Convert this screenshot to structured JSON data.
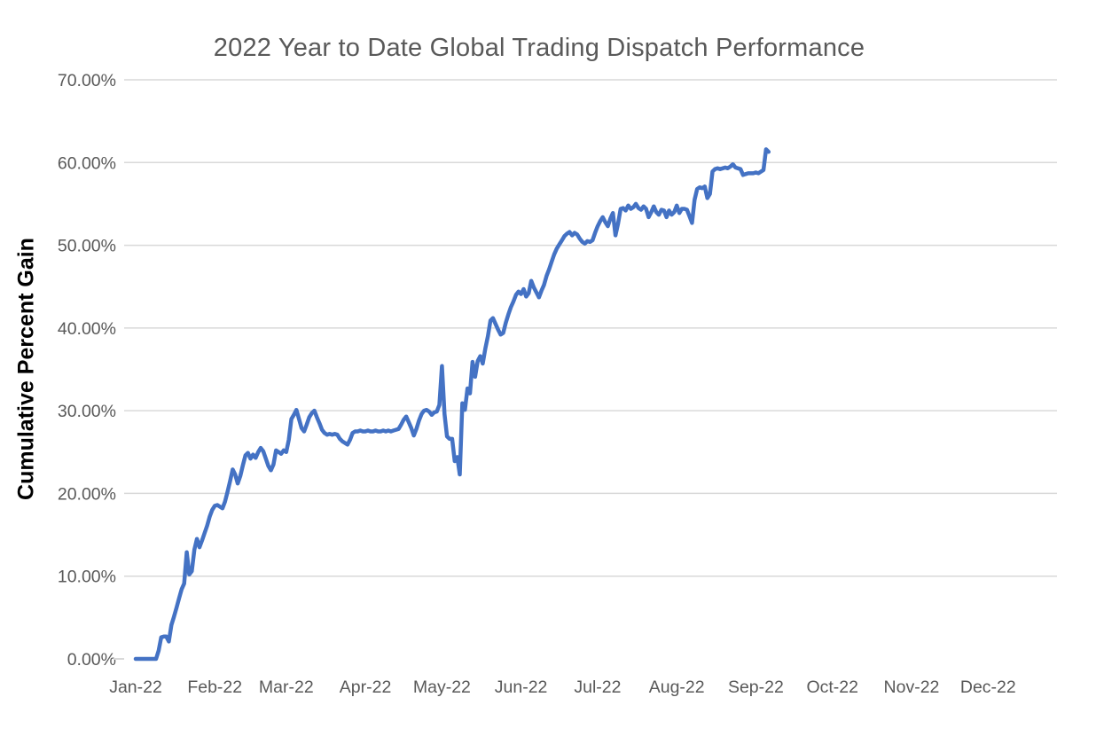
{
  "chart_data": {
    "type": "line",
    "title": "2022 Year to Date Global Trading Dispatch Performance",
    "ylabel": "Cumulative Percent Gain",
    "xlabel": "",
    "x_tick_labels": [
      "Jan-22",
      "Feb-22",
      "Mar-22",
      "Apr-22",
      "May-22",
      "Jun-22",
      "Jul-22",
      "Aug-22",
      "Sep-22",
      "Oct-22",
      "Nov-22",
      "Dec-22"
    ],
    "y_tick_labels": [
      "0.00%",
      "10.00%",
      "20.00%",
      "30.00%",
      "40.00%",
      "50.00%",
      "60.00%",
      "70.00%"
    ],
    "y_tick_values": [
      0,
      10,
      20,
      30,
      40,
      50,
      60,
      70
    ],
    "ylim": [
      0,
      70
    ],
    "xlim_dates": [
      "2022-01-01",
      "2022-12-31"
    ],
    "data_start_date": "2022-01-01",
    "data_end_date": "2022-09-06",
    "grid": "horizontal-only",
    "legend": "none",
    "series": [
      {
        "name": "Cumulative Percent Gain",
        "unit": "%",
        "frequency": "daily",
        "values": [
          0,
          0,
          0,
          0,
          0,
          0,
          0,
          0,
          0,
          1.0,
          2.6,
          2.7,
          2.7,
          2.1,
          4.1,
          5.1,
          6.2,
          7.3,
          8.4,
          9.1,
          12.9,
          10.2,
          10.6,
          13.2,
          14.5,
          13.5,
          14.3,
          15.2,
          16.1,
          17.2,
          18.0,
          18.5,
          18.6,
          18.4,
          18.2,
          19.0,
          20.2,
          21.5,
          22.9,
          22.3,
          21.2,
          22.1,
          23.4,
          24.6,
          24.9,
          24.2,
          24.7,
          24.3,
          25.0,
          25.5,
          25.1,
          24.2,
          23.3,
          22.8,
          23.5,
          25.2,
          25.0,
          24.8,
          25.2,
          25.0,
          26.5,
          29.0,
          29.5,
          30.1,
          29.0,
          27.9,
          27.5,
          28.3,
          29.2,
          29.7,
          30.0,
          29.2,
          28.5,
          27.7,
          27.3,
          27.1,
          27.2,
          27.1,
          27.2,
          27.1,
          26.6,
          26.3,
          26.1,
          25.9,
          26.5,
          27.3,
          27.5,
          27.5,
          27.6,
          27.5,
          27.5,
          27.6,
          27.5,
          27.5,
          27.6,
          27.5,
          27.5,
          27.6,
          27.5,
          27.6,
          27.5,
          27.6,
          27.7,
          27.8,
          28.3,
          28.9,
          29.3,
          28.6,
          27.9,
          27.0,
          27.8,
          28.8,
          29.6,
          30.0,
          30.1,
          29.9,
          29.5,
          29.8,
          29.9,
          30.7,
          35.4,
          29.6,
          26.9,
          26.6,
          26.6,
          23.9,
          24.4,
          22.3,
          30.9,
          30.1,
          32.7,
          32.1,
          35.9,
          34.1,
          36.0,
          36.6,
          35.7,
          37.5,
          39.0,
          40.9,
          41.2,
          40.5,
          39.8,
          39.2,
          39.4,
          40.6,
          41.6,
          42.5,
          43.2,
          44.0,
          44.4,
          44.1,
          44.7,
          43.8,
          44.2,
          45.7,
          44.9,
          44.3,
          43.7,
          44.5,
          45.2,
          46.3,
          47.1,
          48.0,
          48.9,
          49.6,
          50.1,
          50.6,
          51.1,
          51.4,
          51.6,
          51.2,
          51.5,
          51.3,
          50.8,
          50.4,
          50.2,
          50.5,
          50.4,
          50.6,
          51.5,
          52.3,
          52.9,
          53.4,
          52.8,
          52.3,
          53.2,
          53.9,
          51.2,
          52.6,
          54.4,
          54.5,
          54.2,
          54.8,
          54.4,
          54.6,
          55.0,
          54.5,
          54.3,
          54.7,
          54.4,
          53.4,
          54.0,
          54.7,
          54.0,
          53.7,
          54.3,
          54.2,
          53.4,
          54.2,
          53.7,
          54.0,
          54.8,
          53.9,
          54.4,
          54.4,
          54.3,
          53.5,
          52.7,
          55.5,
          56.8,
          57.0,
          56.9,
          57.1,
          55.7,
          56.2,
          58.9,
          59.2,
          59.3,
          59.2,
          59.3,
          59.4,
          59.3,
          59.5,
          59.8,
          59.4,
          59.3,
          59.2,
          58.5,
          58.6,
          58.7,
          58.7,
          58.7,
          58.8,
          58.7,
          58.9,
          59.1,
          61.6,
          61.3
        ]
      }
    ],
    "colors": {
      "line": "#4472C4",
      "gridline": "#D9D9D9",
      "axis_text": "#595959",
      "title_text": "#595959",
      "y_axis_title_text": "#000000",
      "background": "#FFFFFF"
    }
  }
}
